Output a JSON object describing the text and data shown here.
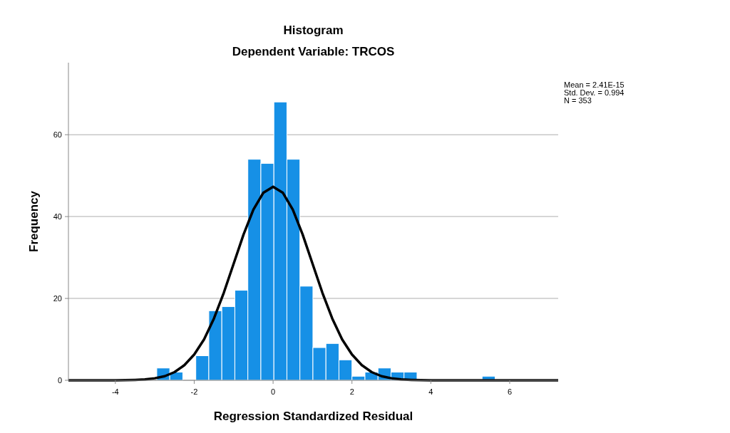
{
  "chart_data": {
    "type": "histogram",
    "title": "Histogram",
    "subtitle": "Dependent Variable: TRCOS",
    "xlabel": "Regression Standardized Residual",
    "ylabel": "Frequency",
    "annotations": [
      "Mean = 2.41E-15",
      "Std. Dev. = 0.994",
      "N = 353"
    ],
    "bins": [
      -2.95,
      -2.62,
      -2.29,
      -1.96,
      -1.63,
      -1.3,
      -0.97,
      -0.64,
      -0.31,
      0.02,
      0.35,
      0.68,
      1.01,
      1.34,
      1.67,
      2.0,
      2.33,
      2.66,
      2.99,
      3.32,
      3.65,
      3.98,
      4.31,
      4.64,
      4.97,
      5.3,
      5.63
    ],
    "series": [
      {
        "color": "#1690e6",
        "values": [
          3,
          2,
          0,
          6,
          17,
          18,
          22,
          54,
          53,
          68,
          54,
          23,
          8,
          9,
          5,
          1,
          2,
          3,
          2,
          2,
          0,
          0,
          0,
          0,
          0,
          1
        ]
      },
      {
        "type": "line",
        "color": "#000000",
        "x": [
          -5.19,
          -4,
          -3.5,
          -3.25,
          -3,
          -2.75,
          -2.5,
          -2.25,
          -2,
          -1.75,
          -1.5,
          -1.25,
          -1,
          -0.75,
          -0.5,
          -0.25,
          0,
          0.25,
          0.5,
          0.75,
          1,
          1.25,
          1.5,
          1.75,
          2,
          2.25,
          2.5,
          2.75,
          3,
          3.25,
          3.5,
          4,
          5,
          7.23
        ],
        "values": [
          0,
          0,
          0.1,
          0.2,
          0.5,
          1,
          2,
          3.7,
          6.3,
          10,
          15.1,
          21.4,
          28.5,
          35.6,
          41.7,
          45.8,
          47.3,
          45.8,
          41.7,
          35.6,
          28.5,
          21.4,
          15.1,
          10,
          6.3,
          3.7,
          2,
          1,
          0.5,
          0.2,
          0.1,
          0,
          0,
          0
        ]
      }
    ],
    "xlim": [
      -5.19,
      7.23
    ],
    "xticks": [
      -4,
      -2,
      0,
      2,
      4,
      6
    ],
    "ylim": [
      0,
      77.6
    ],
    "yticks": [
      0,
      20,
      40,
      60
    ],
    "grid": "y"
  }
}
